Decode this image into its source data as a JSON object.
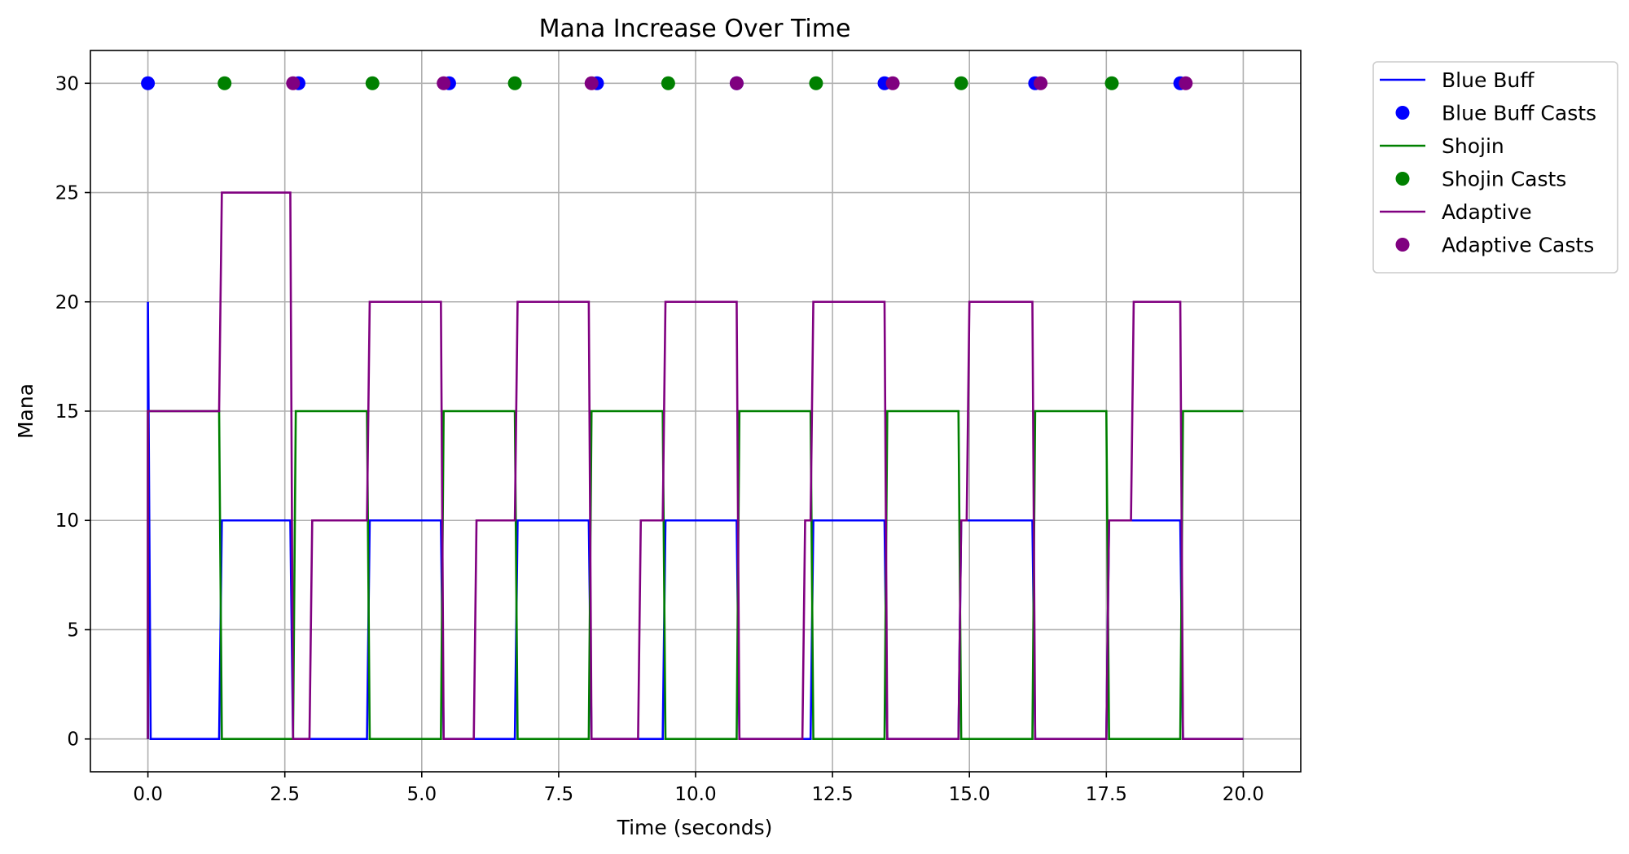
{
  "chart_data": {
    "type": "line",
    "title": "Mana Increase Over Time",
    "xlabel": "Time (seconds)",
    "ylabel": "Mana",
    "xlim": [
      -1.05,
      21.05
    ],
    "ylim": [
      -1.5,
      31.5
    ],
    "xticks": [
      0.0,
      2.5,
      5.0,
      7.5,
      10.0,
      12.5,
      15.0,
      17.5,
      20.0
    ],
    "xtick_labels": [
      "0.0",
      "2.5",
      "5.0",
      "7.5",
      "10.0",
      "12.5",
      "15.0",
      "17.5",
      "20.0"
    ],
    "yticks": [
      0,
      5,
      10,
      15,
      20,
      25,
      30
    ],
    "ytick_labels": [
      "0",
      "5",
      "10",
      "15",
      "20",
      "25",
      "30"
    ],
    "grid": true,
    "legend_position": "outside-top-right",
    "series": [
      {
        "name": "Blue Buff",
        "kind": "line",
        "color": "#0000ff",
        "x": [
          0.0,
          0.0,
          0.05,
          1.3,
          1.35,
          2.6,
          2.65,
          2.7,
          4.0,
          4.05,
          5.35,
          5.4,
          6.7,
          6.75,
          8.05,
          8.1,
          9.4,
          9.45,
          10.75,
          10.8,
          12.1,
          12.15,
          13.45,
          13.5,
          14.8,
          14.85,
          16.15,
          16.2,
          17.5,
          17.55,
          18.85,
          18.9,
          20.0
        ],
        "y": [
          0,
          20,
          0,
          0,
          10,
          10,
          0,
          0,
          0,
          10,
          10,
          0,
          0,
          10,
          10,
          0,
          0,
          10,
          10,
          0,
          0,
          10,
          10,
          0,
          0,
          10,
          10,
          0,
          0,
          10,
          10,
          0,
          0
        ]
      },
      {
        "name": "Blue Buff Casts",
        "kind": "scatter",
        "color": "#0000ff",
        "x": [
          0.0,
          2.75,
          5.5,
          8.2,
          10.75,
          13.45,
          16.2,
          18.85
        ],
        "y": [
          30,
          30,
          30,
          30,
          30,
          30,
          30,
          30
        ]
      },
      {
        "name": "Shojin",
        "kind": "line",
        "color": "#008000",
        "x": [
          0.0,
          0.0,
          1.3,
          1.35,
          2.65,
          2.7,
          4.0,
          4.05,
          5.35,
          5.4,
          6.7,
          6.75,
          8.05,
          8.1,
          9.4,
          9.45,
          10.75,
          10.8,
          12.1,
          12.15,
          13.45,
          13.5,
          14.8,
          14.85,
          16.15,
          16.2,
          17.5,
          17.55,
          18.85,
          18.9,
          20.0
        ],
        "y": [
          0,
          15,
          15,
          0,
          0,
          15,
          15,
          0,
          0,
          15,
          15,
          0,
          0,
          15,
          15,
          0,
          0,
          15,
          15,
          0,
          0,
          15,
          15,
          0,
          0,
          15,
          15,
          0,
          0,
          15,
          15
        ]
      },
      {
        "name": "Shojin Casts",
        "kind": "scatter",
        "color": "#008000",
        "x": [
          1.4,
          4.1,
          6.7,
          9.5,
          12.2,
          14.85,
          17.6
        ],
        "y": [
          30,
          30,
          30,
          30,
          30,
          30,
          30
        ]
      },
      {
        "name": "Adaptive",
        "kind": "line",
        "color": "#800080",
        "x": [
          0.0,
          0.0,
          1.3,
          1.35,
          2.6,
          2.65,
          2.95,
          3.0,
          4.0,
          4.05,
          5.35,
          5.4,
          5.95,
          6.0,
          6.7,
          6.75,
          8.05,
          8.1,
          8.95,
          9.0,
          9.4,
          9.45,
          10.75,
          10.8,
          11.95,
          12.0,
          12.1,
          12.15,
          13.45,
          13.5,
          14.8,
          14.85,
          14.95,
          15.0,
          16.15,
          16.2,
          17.5,
          17.55,
          17.95,
          18.0,
          18.85,
          18.9,
          20.0
        ],
        "y": [
          0,
          15,
          15,
          25,
          25,
          0,
          0,
          10,
          10,
          20,
          20,
          0,
          0,
          10,
          10,
          20,
          20,
          0,
          0,
          10,
          10,
          20,
          20,
          0,
          0,
          10,
          10,
          20,
          20,
          0,
          0,
          10,
          10,
          20,
          20,
          0,
          0,
          10,
          10,
          20,
          20,
          0,
          0
        ]
      },
      {
        "name": "Adaptive Casts",
        "kind": "scatter",
        "color": "#800080",
        "x": [
          2.65,
          5.4,
          8.1,
          10.75,
          13.6,
          16.3,
          18.95
        ],
        "y": [
          30,
          30,
          30,
          30,
          30,
          30,
          30
        ]
      }
    ]
  }
}
